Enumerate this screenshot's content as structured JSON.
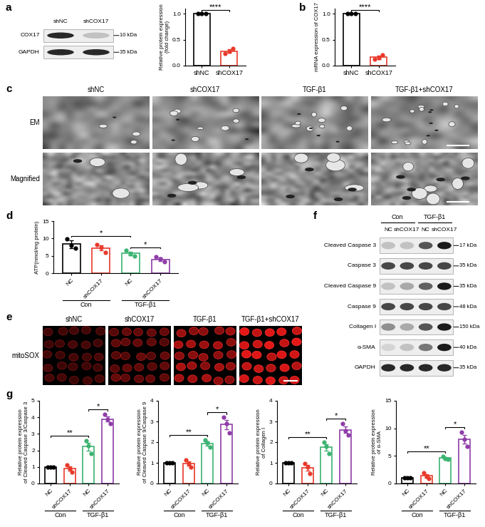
{
  "chart_data": [
    {
      "type": "bar",
      "y_label": "Relative protein expression\n(fold change)",
      "categories": [
        "shNC",
        "shCOX17"
      ],
      "values": [
        1.0,
        0.28
      ],
      "errors": [
        0.0,
        0.03
      ],
      "points": [
        [
          1.0,
          1.0,
          1.0
        ],
        [
          0.24,
          0.27,
          0.33
        ]
      ],
      "colors": [
        "#000000",
        "#e8392a"
      ],
      "ylim": [
        0,
        1.1
      ],
      "yticks": [
        {
          "value": 0,
          "label": "0.0"
        },
        {
          "value": 0.5,
          "label": "0.5"
        },
        {
          "value": 1.0,
          "label": "1.0"
        }
      ],
      "significance": [
        {
          "from": 0,
          "to": 1,
          "label": "****"
        }
      ]
    },
    {
      "panel": "b",
      "type": "bar",
      "y_label": "mRNA expression of COX17",
      "categories": [
        "shNC",
        "shCOX17"
      ],
      "values": [
        1.0,
        0.16
      ],
      "errors": [
        0.0,
        0.03
      ],
      "points": [
        [
          1.0,
          1.0,
          1.0
        ],
        [
          0.13,
          0.15,
          0.2
        ]
      ],
      "colors": [
        "#000000",
        "#e8392a"
      ],
      "ylim": [
        0,
        1.1
      ],
      "yticks": [
        {
          "value": 0,
          "label": "0.0"
        },
        {
          "value": 0.5,
          "label": "0.5"
        },
        {
          "value": 1.0,
          "label": "1.0"
        }
      ],
      "significance": [
        {
          "from": 0,
          "to": 1,
          "label": "****"
        }
      ]
    },
    {
      "panel": "d",
      "type": "bar",
      "y_label": "ATP(nmol/mg protein)",
      "categories": [
        "NC",
        "shCOX17",
        "NC",
        "shCOX17"
      ],
      "groups": [
        "Con",
        "TGF-β1"
      ],
      "values": [
        8.33,
        7.23,
        5.67,
        4.0
      ],
      "errors": [
        1.1,
        0.7,
        0.45,
        0.45
      ],
      "points": [
        [
          9.8,
          8.0,
          7.2
        ],
        [
          8.3,
          7.5,
          5.9
        ],
        [
          6.5,
          5.6,
          4.9
        ],
        [
          4.7,
          4.1,
          3.2
        ]
      ],
      "colors": [
        "#000000",
        "#e8392a",
        "#3cb371",
        "#8e3ca8"
      ],
      "ylim": [
        0,
        15
      ],
      "yticks": [
        0,
        5,
        10,
        15
      ],
      "significance": [
        {
          "from": 0,
          "to": 2,
          "label": "*"
        },
        {
          "from": 2,
          "to": 3,
          "label": "*"
        }
      ]
    },
    {
      "panel": "g",
      "type": "bar",
      "y_label": "Relative protein expression\nof Cleaved Caspase 3/Caspase 3",
      "categories": [
        "NC",
        "shCOX17",
        "NC",
        "shCOX17"
      ],
      "groups": [
        "Con",
        "TGF-β1"
      ],
      "values": [
        1.0,
        0.9,
        2.23,
        3.9
      ],
      "errors": [
        0.0,
        0.12,
        0.23,
        0.17
      ],
      "points": [
        [
          1.0,
          1.0,
          1.0
        ],
        [
          1.1,
          0.9,
          0.7
        ],
        [
          2.6,
          2.3,
          1.8
        ],
        [
          4.2,
          3.9,
          3.6
        ]
      ],
      "colors": [
        "#000000",
        "#e8392a",
        "#3cb371",
        "#8e3ca8"
      ],
      "ylim": [
        0,
        5
      ],
      "yticks": [
        0,
        1,
        2,
        3,
        4,
        5
      ],
      "significance": [
        {
          "from": 0,
          "to": 2,
          "label": "**"
        },
        {
          "from": 2,
          "to": 3,
          "label": "*"
        }
      ]
    },
    {
      "type": "bar",
      "y_label": "Relative protein expression\nof Cleaved Caspase 9/Caspase 9",
      "categories": [
        "NC",
        "shCOX17",
        "NC",
        "shCOX17"
      ],
      "groups": [
        "Con",
        "TGF-β1"
      ],
      "values": [
        1.0,
        0.97,
        1.93,
        2.85
      ],
      "errors": [
        0.0,
        0.1,
        0.1,
        0.22
      ],
      "points": [
        [
          1.0,
          1.0,
          1.0
        ],
        [
          1.15,
          0.95,
          0.8
        ],
        [
          2.1,
          1.95,
          1.75
        ],
        [
          3.2,
          2.9,
          2.45
        ]
      ],
      "colors": [
        "#000000",
        "#e8392a",
        "#3cb371",
        "#8e3ca8"
      ],
      "ylim": [
        0,
        4
      ],
      "yticks": [
        0,
        1,
        2,
        3,
        4
      ],
      "significance": [
        {
          "from": 0,
          "to": 2,
          "label": "**"
        },
        {
          "from": 2,
          "to": 3,
          "label": "*"
        }
      ]
    },
    {
      "type": "bar",
      "y_label": "Relative protein expression\nof Collagen I",
      "categories": [
        "NC",
        "shCOX17",
        "NC",
        "shCOX17"
      ],
      "groups": [
        "Con",
        "TGF-β1"
      ],
      "values": [
        1.0,
        0.75,
        1.75,
        2.6
      ],
      "errors": [
        0.0,
        0.13,
        0.16,
        0.16
      ],
      "points": [
        [
          1.0,
          1.0,
          1.0
        ],
        [
          0.95,
          0.8,
          0.5
        ],
        [
          2.0,
          1.8,
          1.45
        ],
        [
          2.9,
          2.55,
          2.35
        ]
      ],
      "colors": [
        "#000000",
        "#e8392a",
        "#3cb371",
        "#8e3ca8"
      ],
      "ylim": [
        0,
        4
      ],
      "yticks": [
        0,
        1,
        2,
        3,
        4
      ],
      "significance": [
        {
          "from": 0,
          "to": 2,
          "label": "**"
        },
        {
          "from": 2,
          "to": 3,
          "label": "*"
        }
      ]
    },
    {
      "type": "bar",
      "y_label": "Relative protein expression\nof α-SMA",
      "categories": [
        "NC",
        "shCOX17",
        "NC",
        "shCOX17"
      ],
      "groups": [
        "Con",
        "TGF-β1"
      ],
      "values": [
        1.0,
        1.4,
        4.6,
        8.0
      ],
      "errors": [
        0.0,
        0.32,
        0.15,
        0.75
      ],
      "points": [
        [
          1.0,
          1.0,
          1.0
        ],
        [
          2.0,
          1.3,
          0.9
        ],
        [
          4.9,
          4.5,
          4.4
        ],
        [
          9.3,
          8.0,
          6.7
        ]
      ],
      "colors": [
        "#000000",
        "#e8392a",
        "#3cb371",
        "#8e3ca8"
      ],
      "ylim": [
        0,
        15
      ],
      "yticks": [
        0,
        5,
        10,
        15
      ],
      "significance": [
        {
          "from": 0,
          "to": 2,
          "label": "**"
        },
        {
          "from": 2,
          "to": 3,
          "label": "*"
        }
      ]
    }
  ],
  "blots": [
    {
      "panel": "a",
      "lanes": [
        "shNC",
        "shCOX17"
      ],
      "rows": [
        {
          "label": "COX17",
          "kda": "10 kDa",
          "band_intensity": [
            0.9,
            0.3
          ]
        },
        {
          "label": "GAPDH",
          "kda": "35 kDa",
          "band_intensity": [
            0.9,
            0.9
          ]
        }
      ]
    },
    {
      "panel": "f",
      "groups": [
        "Con",
        "TGF-β1"
      ],
      "lanes": [
        "NC",
        "shCOX17",
        "NC",
        "shCOX17"
      ],
      "rows": [
        {
          "label": "Cleaved Caspase 3",
          "kda": "17 kDa",
          "band_intensity": [
            0.3,
            0.3,
            0.75,
            0.95
          ]
        },
        {
          "label": "Caspase 3",
          "kda": "35 kDa",
          "band_intensity": [
            0.8,
            0.8,
            0.8,
            0.8
          ]
        },
        {
          "label": "Cleaved Caspase 9",
          "kda": "35 kDa",
          "band_intensity": [
            0.3,
            0.4,
            0.7,
            0.95
          ]
        },
        {
          "label": "Caspase 9",
          "kda": "48 kDa",
          "band_intensity": [
            0.8,
            0.8,
            0.8,
            0.8
          ]
        },
        {
          "label": "Collagen I",
          "kda": "150 kDa",
          "band_intensity": [
            0.5,
            0.4,
            0.75,
            0.95
          ]
        },
        {
          "label": "α-SMA",
          "kda": "40 kDa",
          "band_intensity": [
            0.2,
            0.3,
            0.6,
            0.95
          ]
        },
        {
          "label": "GAPDH",
          "kda": "35 kDa",
          "band_intensity": [
            0.9,
            0.9,
            0.9,
            0.9
          ]
        }
      ]
    }
  ],
  "images": [
    {
      "panel": "c",
      "kind": "EM",
      "columns": [
        "shNC",
        "shCOX17",
        "TGF-β1",
        "TGF-β1+shCOX17"
      ],
      "rows": [
        "EM",
        "Magnified"
      ],
      "damage": [
        0.1,
        0.5,
        0.6,
        0.9
      ]
    },
    {
      "panel": "e",
      "kind": "fluorescence",
      "columns": [
        "shNC",
        "shCOX17",
        "TGF-β1",
        "TGF-β1+shCOX17"
      ],
      "rows": [
        "mitoSOX"
      ],
      "signal": [
        0.2,
        0.35,
        0.7,
        1.0
      ]
    }
  ]
}
